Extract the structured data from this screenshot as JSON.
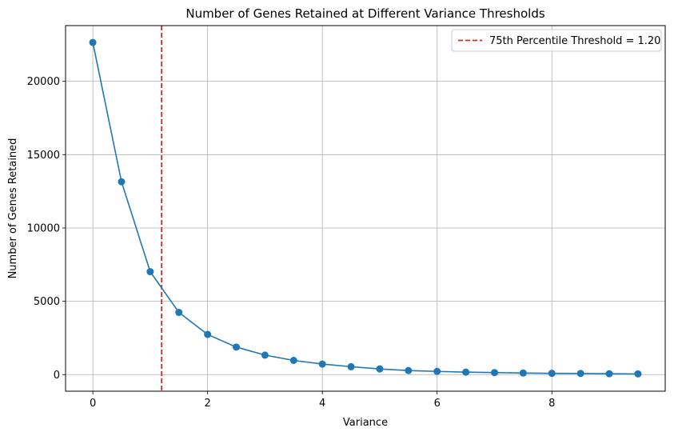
{
  "chart_data": {
    "type": "line",
    "title": "Number of Genes Retained at Different Variance Thresholds",
    "xlabel": "Variance",
    "ylabel": "Number of Genes Retained",
    "xlim": [
      -0.475,
      9.975
    ],
    "ylim": [
      -1130,
      23800
    ],
    "xticks": [
      0,
      2,
      4,
      6,
      8
    ],
    "yticks": [
      0,
      5000,
      10000,
      15000,
      20000
    ],
    "grid": true,
    "legend_position": "top-right",
    "series": [
      {
        "color": "#1f77b4",
        "marker": "circle",
        "x": [
          0,
          0.5,
          1.0,
          1.5,
          2.0,
          2.5,
          3.0,
          3.5,
          4.0,
          4.5,
          5.0,
          5.5,
          6.0,
          6.5,
          7.0,
          7.5,
          8.0,
          8.5,
          9.0,
          9.5
        ],
        "y": [
          22650,
          13150,
          7020,
          4240,
          2740,
          1880,
          1330,
          970,
          720,
          540,
          390,
          280,
          220,
          170,
          140,
          110,
          90,
          80,
          60,
          50
        ]
      }
    ],
    "reference_lines": [
      {
        "orientation": "vertical",
        "x": 1.2,
        "color": "#d62728",
        "style": "dashed",
        "label": "75th Percentile Threshold = 1.20"
      }
    ]
  }
}
